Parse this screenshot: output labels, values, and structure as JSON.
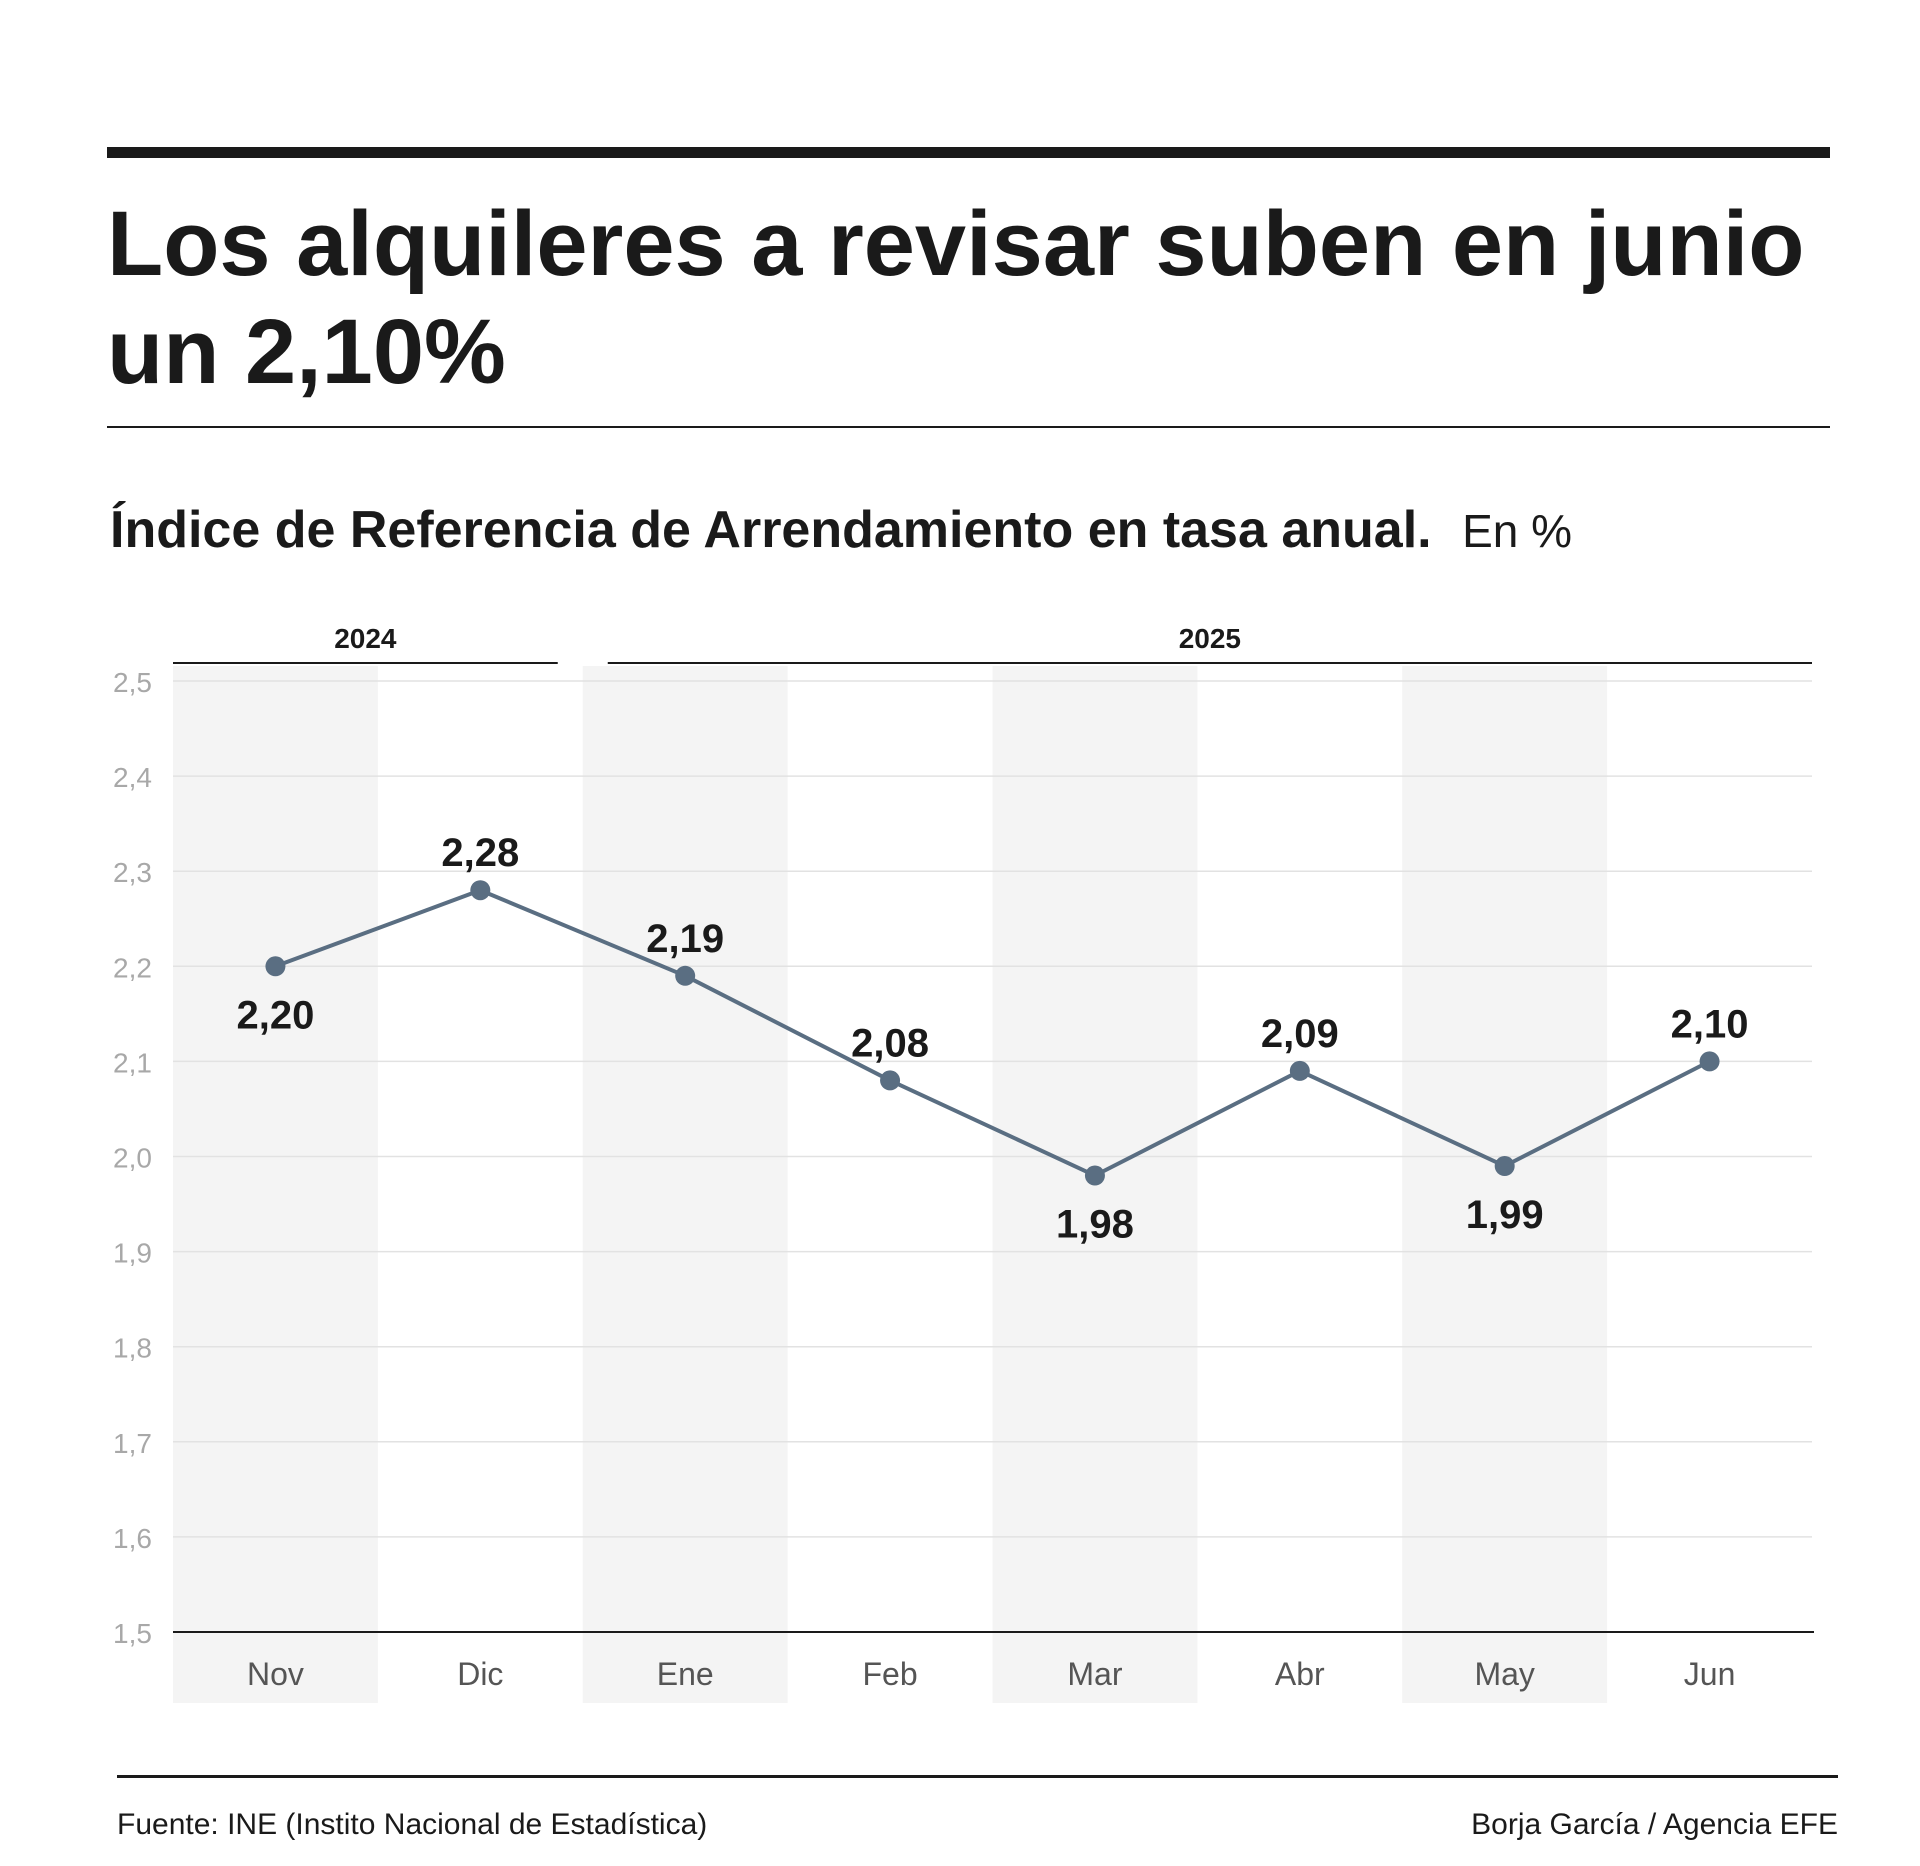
{
  "headline": "Los alquileres a revisar suben en junio un 2,10%",
  "subtitle": {
    "bold": "Índice de Referencia de Arrendamiento en tasa anual.",
    "unit": "En %"
  },
  "chart_data": {
    "type": "line",
    "title": "Índice de Referencia de Arrendamiento en tasa anual.",
    "unit": "En %",
    "year_groups": [
      {
        "label": "2024",
        "months": [
          "Nov",
          "Dic"
        ]
      },
      {
        "label": "2025",
        "months": [
          "Ene",
          "Feb",
          "Mar",
          "Abr",
          "May",
          "Jun"
        ]
      }
    ],
    "categories": [
      "Nov",
      "Dic",
      "Ene",
      "Feb",
      "Mar",
      "Abr",
      "May",
      "Jun"
    ],
    "values": [
      2.2,
      2.28,
      2.19,
      2.08,
      1.98,
      2.09,
      1.99,
      2.1
    ],
    "data_labels": [
      "2,20",
      "2,28",
      "2,19",
      "2,08",
      "1,98",
      "2,09",
      "1,99",
      "2,10"
    ],
    "ylim": [
      1.5,
      2.5
    ],
    "yticks": [
      {
        "value": 2.5,
        "label": "2,5"
      },
      {
        "value": 2.4,
        "label": "2,4"
      },
      {
        "value": 2.3,
        "label": "2,3"
      },
      {
        "value": 2.2,
        "label": "2,2"
      },
      {
        "value": 2.1,
        "label": "2,1"
      },
      {
        "value": 2.0,
        "label": "2,0"
      },
      {
        "value": 1.9,
        "label": "1,9"
      },
      {
        "value": 1.8,
        "label": "1,8"
      },
      {
        "value": 1.7,
        "label": "1,7"
      },
      {
        "value": 1.6,
        "label": "1,6"
      },
      {
        "value": 1.5,
        "label": "1,5"
      }
    ],
    "grid": true,
    "line_color": "#5a6e82",
    "band_color": "#f4f4f4"
  },
  "footer": {
    "source": "Fuente: INE (Instito Nacional de Estadística)",
    "credit": "Borja García / Agencia EFE"
  }
}
